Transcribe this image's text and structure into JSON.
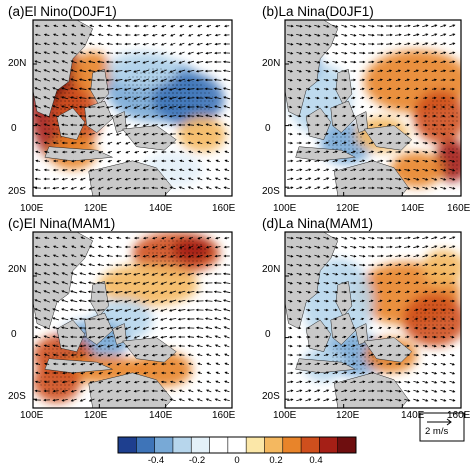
{
  "panels": [
    {
      "id": "a",
      "title": "(a)El Nino(D0JF1)"
    },
    {
      "id": "b",
      "title": "(b)La Nina(D0JF1)"
    },
    {
      "id": "c",
      "title": "(c)El Nina(MAM1)"
    },
    {
      "id": "d",
      "title": "(d)La Nina(MAM1)"
    }
  ],
  "axes": {
    "lon_ticks": [
      "100E",
      "120E",
      "140E",
      "160E"
    ],
    "lat_ticks": [
      "20N",
      "0",
      "20S"
    ]
  },
  "colorbar": {
    "labels": [
      "-0.4",
      "-0.2",
      "0",
      "0.2",
      "0.4"
    ],
    "colors": [
      "#1e3f8f",
      "#3e74b8",
      "#78a9d6",
      "#b7d6ec",
      "#e3f0f8",
      "#ffffff",
      "#ffffff",
      "#fbe7a8",
      "#f4b860",
      "#e8842a",
      "#cf4f1d",
      "#a51f16",
      "#6e0e0f"
    ]
  },
  "reference_vector": {
    "label": "2 m/s"
  },
  "style": {
    "land": "#c9c9c9",
    "frame": "#000000"
  }
}
